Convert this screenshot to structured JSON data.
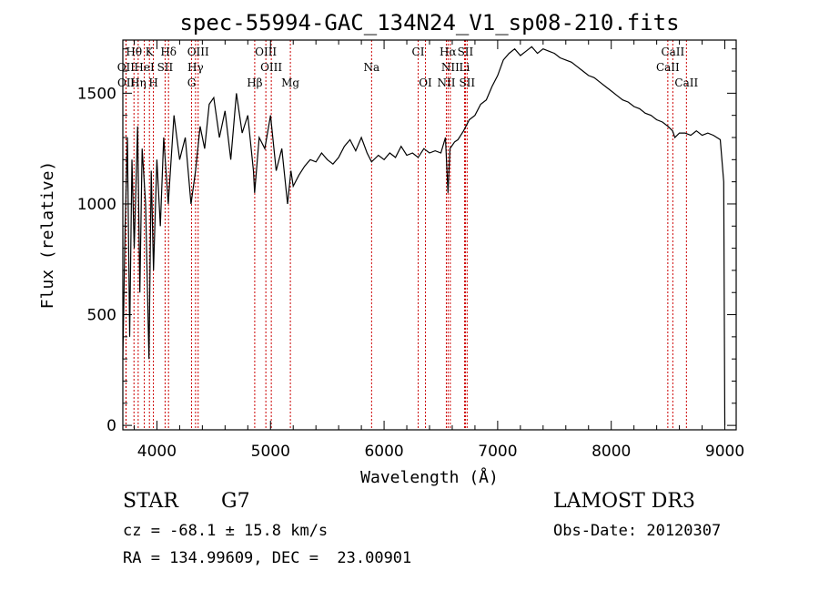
{
  "chart_data": {
    "type": "line",
    "title": "spec-55994-GAC_134N24_V1_sp08-210.fits",
    "xlabel": "Wavelength (Å)",
    "ylabel": "Flux (relative)",
    "xlim": [
      3700,
      9100
    ],
    "ylim": [
      -20,
      1740
    ],
    "x_ticks": [
      4000,
      5000,
      6000,
      7000,
      8000,
      9000
    ],
    "y_ticks": [
      0,
      500,
      1000,
      1500
    ],
    "series": [
      {
        "name": "flux",
        "x": [
          3700,
          3720,
          3740,
          3760,
          3780,
          3800,
          3830,
          3850,
          3870,
          3900,
          3930,
          3950,
          3970,
          4000,
          4030,
          4060,
          4100,
          4150,
          4200,
          4250,
          4300,
          4340,
          4380,
          4420,
          4460,
          4500,
          4550,
          4600,
          4650,
          4700,
          4750,
          4800,
          4850,
          4860,
          4900,
          4950,
          5000,
          5050,
          5100,
          5150,
          5180,
          5200,
          5250,
          5300,
          5350,
          5400,
          5450,
          5500,
          5550,
          5600,
          5650,
          5700,
          5750,
          5800,
          5850,
          5890,
          5950,
          6000,
          6050,
          6100,
          6150,
          6200,
          6250,
          6300,
          6350,
          6400,
          6450,
          6500,
          6540,
          6563,
          6580,
          6620,
          6650,
          6700,
          6750,
          6800,
          6850,
          6900,
          6950,
          7000,
          7050,
          7100,
          7150,
          7200,
          7250,
          7300,
          7350,
          7400,
          7450,
          7500,
          7550,
          7600,
          7650,
          7700,
          7750,
          7800,
          7850,
          7900,
          7950,
          8000,
          8050,
          8100,
          8150,
          8200,
          8250,
          8300,
          8350,
          8400,
          8450,
          8500,
          8540,
          8560,
          8600,
          8650,
          8700,
          8750,
          8800,
          8850,
          8900,
          8960,
          8990,
          9000
        ],
        "y": [
          300,
          900,
          1300,
          400,
          1200,
          800,
          1350,
          600,
          1250,
          1000,
          300,
          1150,
          700,
          1200,
          900,
          1300,
          1000,
          1400,
          1200,
          1300,
          1000,
          1150,
          1350,
          1250,
          1450,
          1480,
          1300,
          1420,
          1200,
          1500,
          1320,
          1400,
          1150,
          1050,
          1300,
          1250,
          1400,
          1150,
          1250,
          1000,
          1150,
          1080,
          1130,
          1170,
          1200,
          1190,
          1230,
          1200,
          1180,
          1210,
          1260,
          1290,
          1240,
          1300,
          1230,
          1190,
          1220,
          1200,
          1230,
          1210,
          1260,
          1220,
          1230,
          1210,
          1250,
          1230,
          1240,
          1230,
          1300,
          1050,
          1250,
          1280,
          1290,
          1330,
          1380,
          1400,
          1450,
          1470,
          1530,
          1580,
          1650,
          1680,
          1700,
          1670,
          1690,
          1710,
          1680,
          1700,
          1690,
          1680,
          1660,
          1650,
          1640,
          1620,
          1600,
          1580,
          1570,
          1550,
          1530,
          1510,
          1490,
          1470,
          1460,
          1440,
          1430,
          1410,
          1400,
          1380,
          1370,
          1350,
          1330,
          1300,
          1320,
          1320,
          1310,
          1330,
          1310,
          1320,
          1310,
          1290,
          1100,
          0
        ]
      }
    ],
    "lines": [
      {
        "name": "Hθ",
        "wl": 3798,
        "row": 0
      },
      {
        "name": "K",
        "wl": 3934,
        "row": 0
      },
      {
        "name": "Hδ",
        "wl": 4102,
        "row": 0
      },
      {
        "name": "OIII",
        "wl": 4363,
        "row": 0
      },
      {
        "name": "OIII",
        "wl": 4959,
        "row": 0
      },
      {
        "name": "CI",
        "wl": 6300,
        "row": 0
      },
      {
        "name": "Hα",
        "wl": 6563,
        "row": 0
      },
      {
        "name": "SII",
        "wl": 6716,
        "row": 0
      },
      {
        "name": "CaII",
        "wl": 8542,
        "row": 0
      },
      {
        "name": "OII",
        "wl": 3727,
        "row": 1
      },
      {
        "name": "HeI",
        "wl": 3889,
        "row": 1
      },
      {
        "name": "SII",
        "wl": 4072,
        "row": 1
      },
      {
        "name": "Hγ",
        "wl": 4340,
        "row": 1
      },
      {
        "name": "OIII",
        "wl": 5007,
        "row": 1
      },
      {
        "name": "Na",
        "wl": 5890,
        "row": 1
      },
      {
        "name": "NII",
        "wl": 6583,
        "row": 1
      },
      {
        "name": "Li",
        "wl": 6708,
        "row": 1
      },
      {
        "name": "CaII",
        "wl": 8498,
        "row": 1
      },
      {
        "name": "OII",
        "wl": 3729,
        "row": 2
      },
      {
        "name": "Hη",
        "wl": 3835,
        "row": 2
      },
      {
        "name": "H",
        "wl": 3969,
        "row": 2
      },
      {
        "name": "G",
        "wl": 4305,
        "row": 2
      },
      {
        "name": "Hβ",
        "wl": 4861,
        "row": 2
      },
      {
        "name": "Mg",
        "wl": 5175,
        "row": 2
      },
      {
        "name": "OI",
        "wl": 6364,
        "row": 2
      },
      {
        "name": "NII",
        "wl": 6548,
        "row": 2
      },
      {
        "name": "SII",
        "wl": 6731,
        "row": 2
      },
      {
        "name": "CaII",
        "wl": 8662,
        "row": 2
      }
    ]
  },
  "info": {
    "object_class": "STAR",
    "subclass": "G7",
    "survey": "LAMOST DR3",
    "redshift": "cz = -68.1 ± 15.8 km/s",
    "obs_date": "Obs-Date: 20120307",
    "coords": "RA = 134.99609, DEC =  23.00901"
  }
}
